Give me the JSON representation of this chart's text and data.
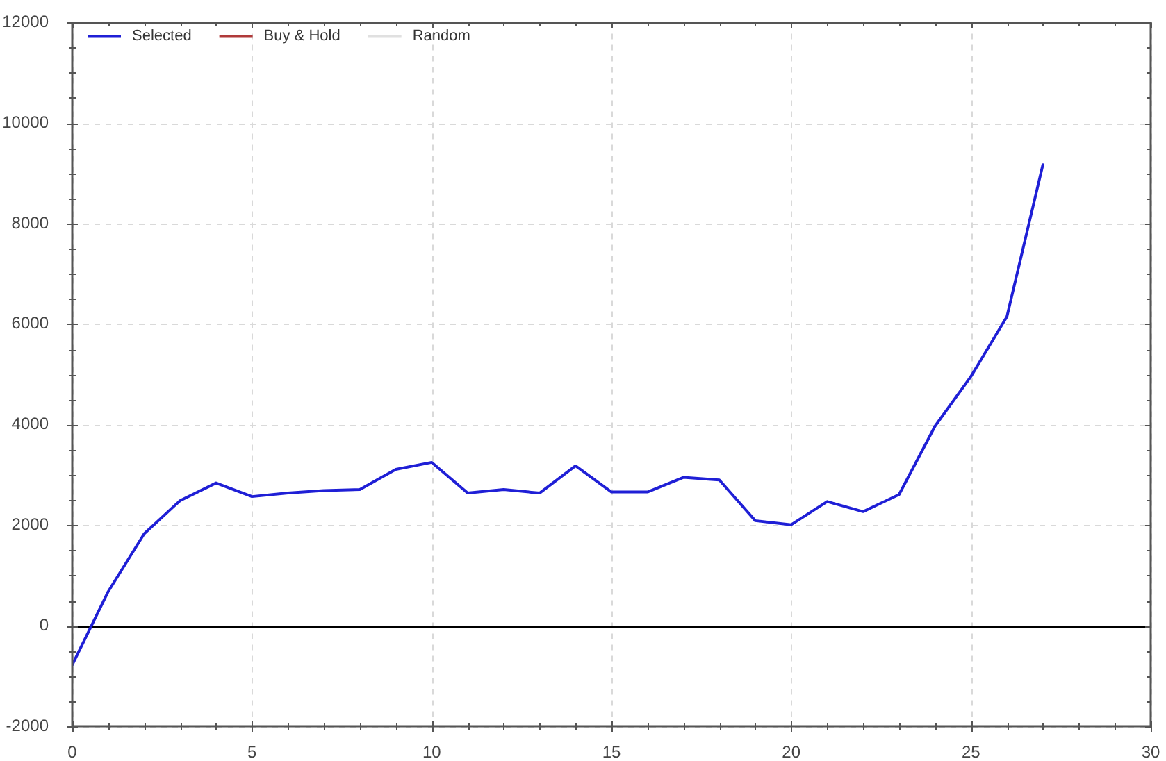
{
  "chart_data": {
    "type": "line",
    "x": [
      0,
      1,
      2,
      3,
      4,
      5,
      6,
      7,
      8,
      9,
      10,
      11,
      12,
      13,
      14,
      15,
      16,
      17,
      18,
      19,
      20,
      21,
      22,
      23,
      24,
      25,
      26,
      27
    ],
    "series": [
      {
        "name": "Selected",
        "color": "#1f1fd6",
        "values": [
          -780,
          680,
          1830,
          2490,
          2840,
          2570,
          2640,
          2690,
          2710,
          3110,
          3250,
          2640,
          2710,
          2640,
          3180,
          2660,
          2660,
          2950,
          2900,
          2090,
          2010,
          2470,
          2270,
          2610,
          3970,
          4960,
          6150,
          9170
        ]
      },
      {
        "name": "Buy & Hold",
        "color": "#b03a3a",
        "values": [
          null,
          null,
          null,
          null,
          null,
          null,
          null,
          null,
          null,
          null,
          null,
          null,
          null,
          null,
          null,
          null,
          null,
          null,
          null,
          null,
          null,
          null,
          null,
          null,
          null,
          null,
          null,
          null
        ]
      },
      {
        "name": "Random",
        "color": "#e0e0e0",
        "values": [
          null,
          null,
          null,
          null,
          null,
          null,
          null,
          null,
          null,
          null,
          null,
          null,
          null,
          null,
          null,
          null,
          null,
          null,
          null,
          null,
          null,
          null,
          null,
          null,
          null,
          null,
          null,
          null
        ]
      }
    ],
    "xlim": [
      0,
      30
    ],
    "xticks": [
      0,
      {
        "value": 1,
        "label": null
      },
      {
        "value": 2,
        "label": null
      },
      {
        "value": 3,
        "label": null
      },
      {
        "value": 4,
        "label": null
      },
      5,
      {
        "value": 6,
        "label": null
      },
      {
        "value": 7,
        "label": null
      },
      {
        "value": 8,
        "label": null
      },
      {
        "value": 9,
        "label": null
      },
      10,
      {
        "value": 11,
        "label": null
      },
      {
        "value": 12,
        "label": null
      },
      {
        "value": 13,
        "label": null
      },
      {
        "value": 14,
        "label": null
      },
      15,
      {
        "value": 16,
        "label": null
      },
      {
        "value": 17,
        "label": null
      },
      {
        "value": 18,
        "label": null
      },
      {
        "value": 19,
        "label": null
      },
      20,
      {
        "value": 21,
        "label": null
      },
      {
        "value": 22,
        "label": null
      },
      {
        "value": 23,
        "label": null
      },
      {
        "value": 24,
        "label": null
      },
      25,
      {
        "value": 26,
        "label": null
      },
      {
        "value": 27,
        "label": null
      },
      {
        "value": 28,
        "label": null
      },
      {
        "value": 29,
        "label": null
      },
      30
    ],
    "ylim": [
      -2000,
      12000
    ],
    "yticks": [
      -2000,
      {
        "value": -1500,
        "label": null
      },
      {
        "value": -1000,
        "label": null
      },
      {
        "value": -500,
        "label": null
      },
      0,
      {
        "value": 500,
        "label": null
      },
      {
        "value": 1000,
        "label": null
      },
      {
        "value": 1500,
        "label": null
      },
      2000,
      {
        "value": 2500,
        "label": null
      },
      {
        "value": 3000,
        "label": null
      },
      {
        "value": 3500,
        "label": null
      },
      4000,
      {
        "value": 4500,
        "label": null
      },
      {
        "value": 5000,
        "label": null
      },
      {
        "value": 5500,
        "label": null
      },
      6000,
      {
        "value": 6500,
        "label": null
      },
      {
        "value": 7000,
        "label": null
      },
      {
        "value": 7500,
        "label": null
      },
      8000,
      {
        "value": 8500,
        "label": null
      },
      {
        "value": 9000,
        "label": null
      },
      {
        "value": 9500,
        "label": null
      },
      10000,
      {
        "value": 10500,
        "label": null
      },
      {
        "value": 11000,
        "label": null
      },
      {
        "value": 11500,
        "label": null
      },
      12000
    ],
    "grid": true,
    "legend": "top left",
    "marker": "none",
    "line_style": "solid",
    "ref_lines": [
      {
        "axis": "y",
        "value": 0,
        "color": "#000000"
      }
    ]
  }
}
